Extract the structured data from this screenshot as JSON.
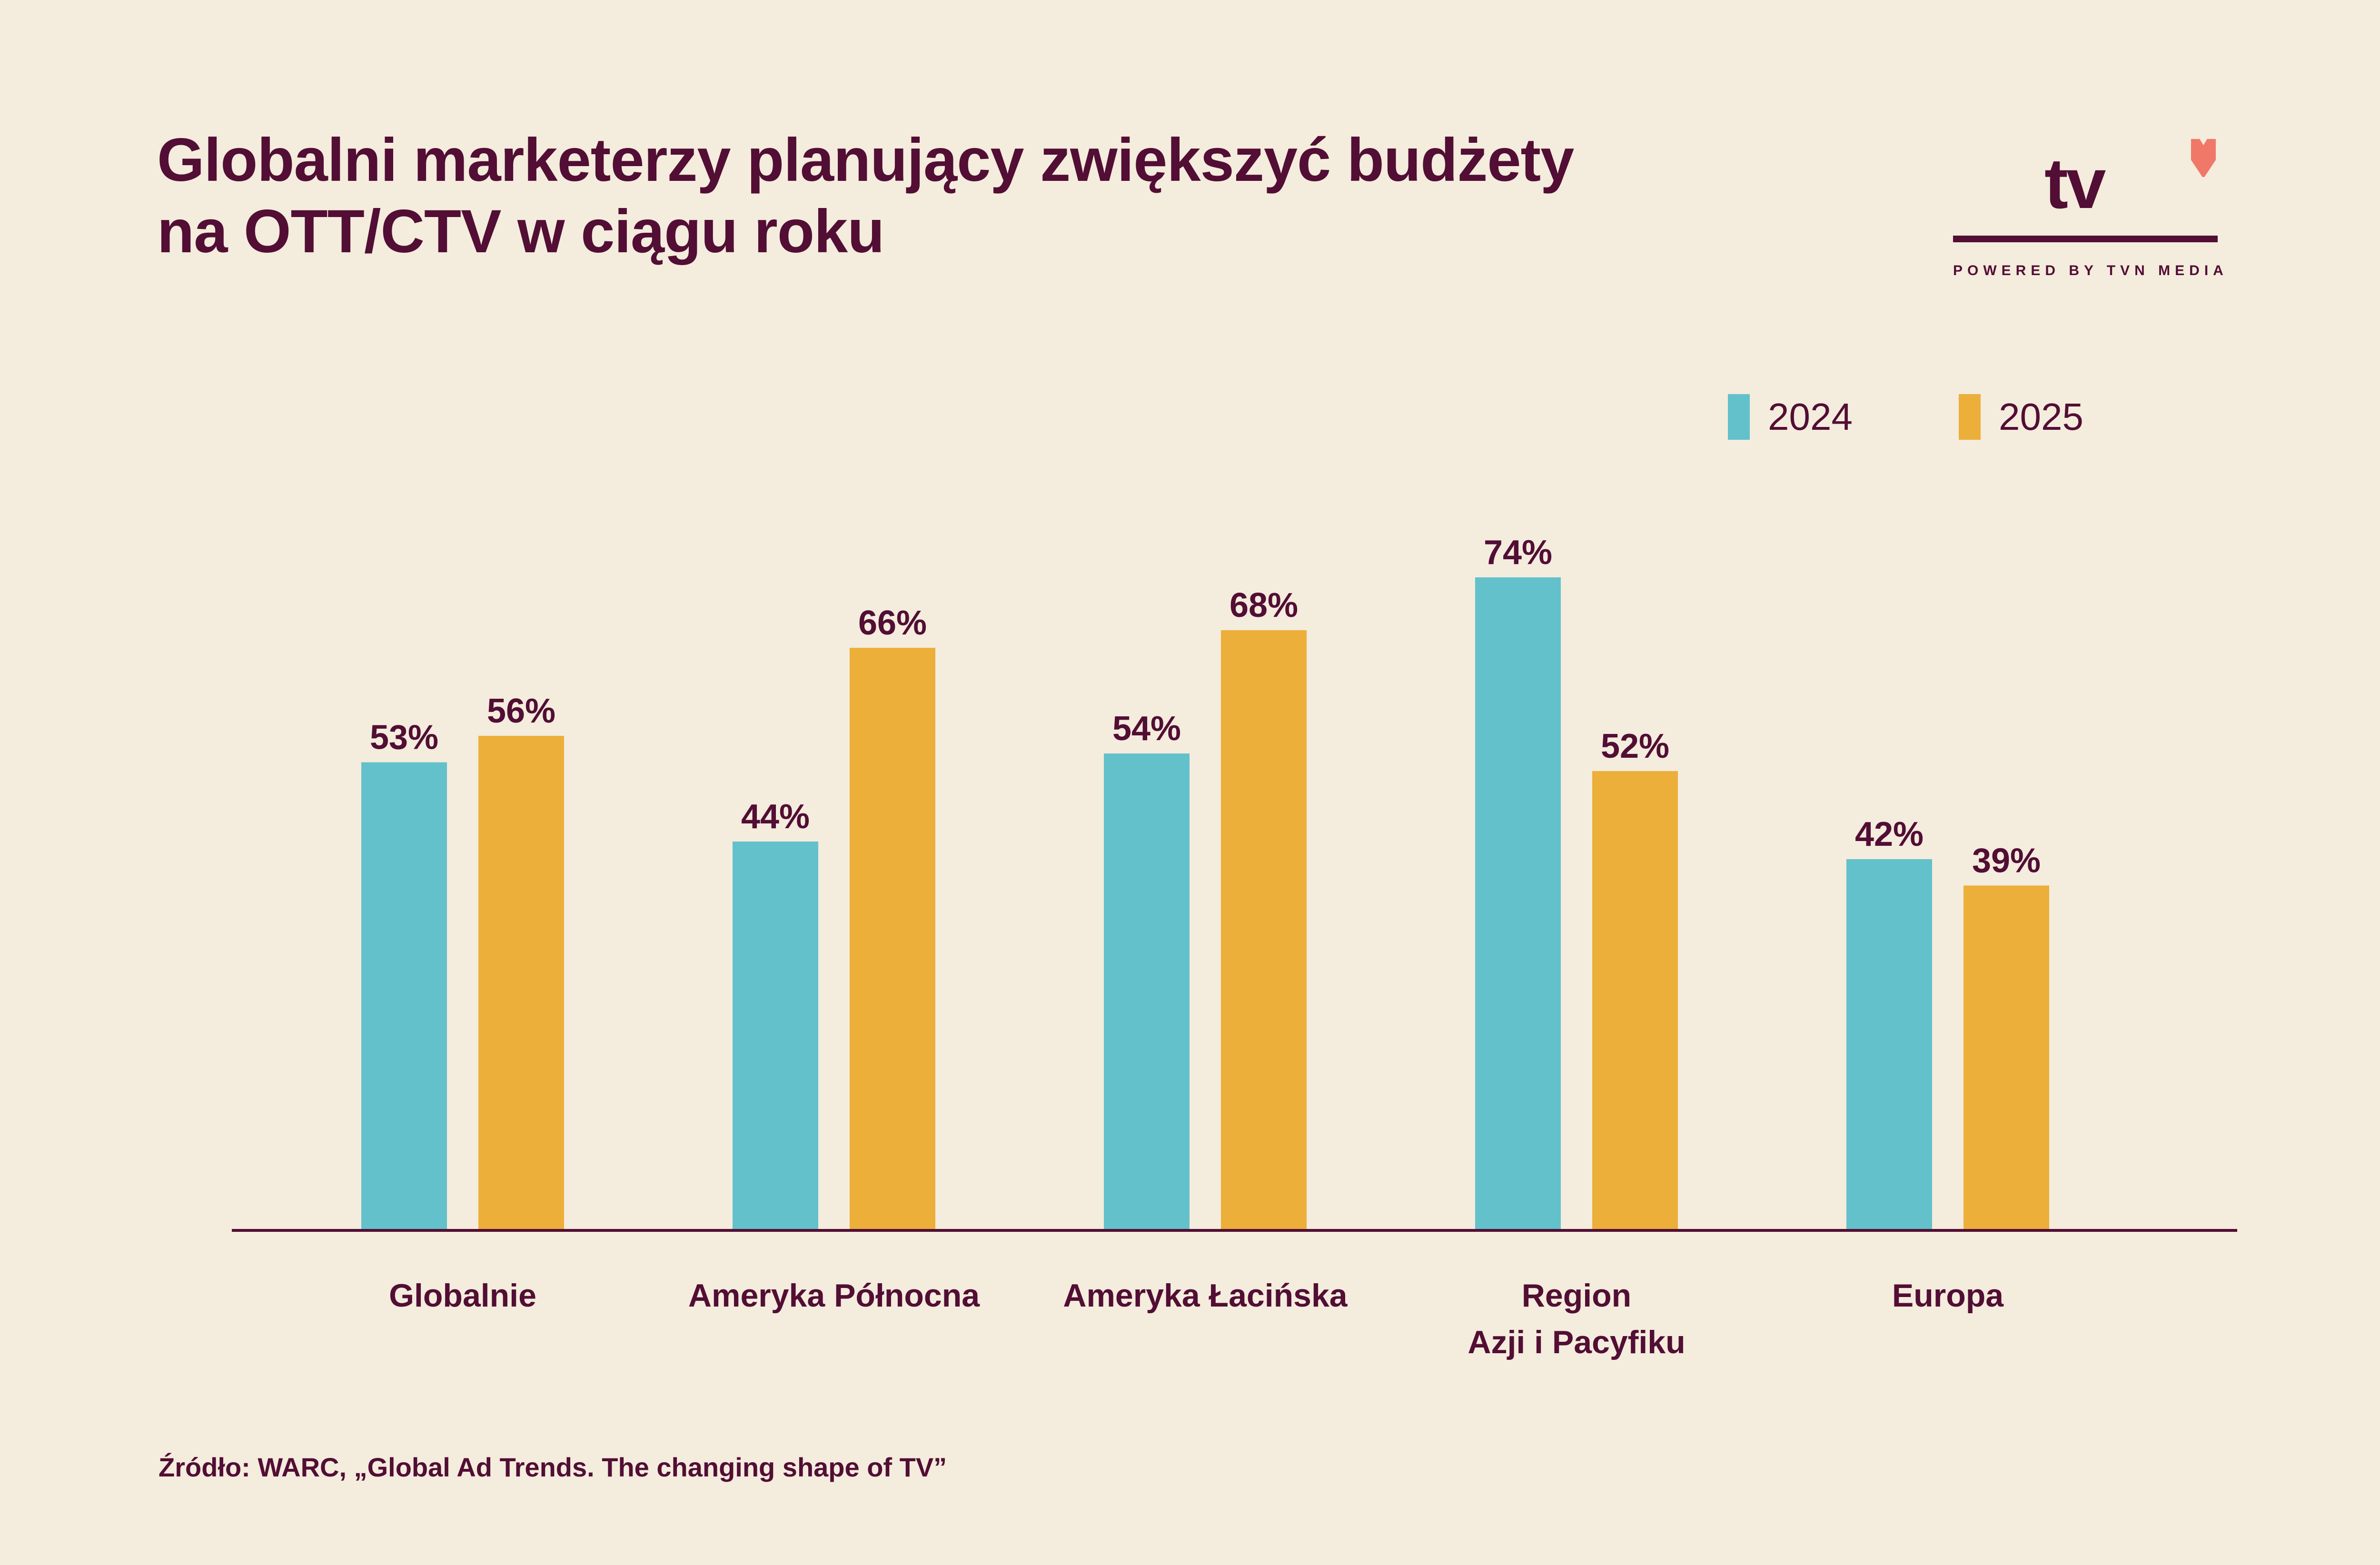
{
  "title": {
    "line1": "Globalni marketerzy planujący zwiększyć budżety",
    "line2": "na OTT/CTV w ciągu roku"
  },
  "logo": {
    "text": "tv",
    "caption": "POWERED BY TVN MEDIA",
    "heart_icon": "heart-icon",
    "heart_color": "#f07868"
  },
  "colors": {
    "text": "#520e34",
    "background": "#f4ecdd",
    "series_2024": "#63c1cb",
    "series_2025": "#ecaf3a"
  },
  "source": "Źródło: WARC, „Global Ad Trends. The changing shape of TV”",
  "chart_data": {
    "type": "bar",
    "title": "Globalni marketerzy planujący zwiększyć budżety na OTT/CTV w ciągu roku",
    "xlabel": "",
    "ylabel": "",
    "ylim": [
      0,
      100
    ],
    "grid": false,
    "legend_position": "top-right",
    "categories": [
      "Globalnie",
      "Ameryka Północna",
      "Ameryka Łacińska",
      "Region\nAzji i Pacyfiku",
      "Europa"
    ],
    "category_lines": [
      [
        "Globalnie"
      ],
      [
        "Ameryka Północna"
      ],
      [
        "Ameryka Łacińska"
      ],
      [
        "Region",
        "Azji i Pacyfiku"
      ],
      [
        "Europa"
      ]
    ],
    "series": [
      {
        "name": "2024",
        "color": "#63c1cb",
        "values": [
          53,
          44,
          54,
          74,
          42
        ],
        "labels": [
          "53%",
          "44%",
          "54%",
          "74%",
          "42%"
        ]
      },
      {
        "name": "2025",
        "color": "#ecaf3a",
        "values": [
          56,
          66,
          68,
          52,
          39
        ],
        "labels": [
          "56%",
          "66%",
          "68%",
          "52%",
          "39%"
        ]
      }
    ]
  }
}
